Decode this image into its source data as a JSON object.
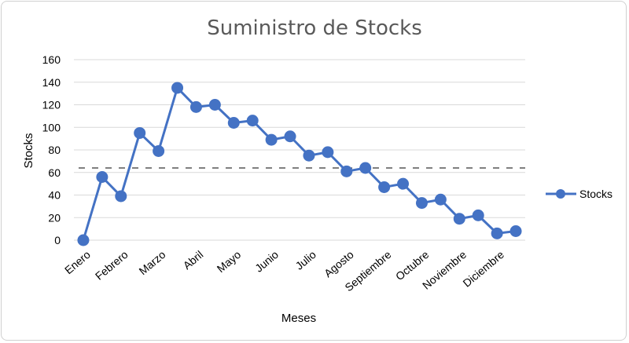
{
  "chart_data": {
    "type": "line",
    "title": "Suministro de Stocks",
    "xlabel": "Meses",
    "ylabel": "Stocks",
    "ylim": [
      0,
      160
    ],
    "yticks": [
      0,
      20,
      40,
      60,
      80,
      100,
      120,
      140,
      160
    ],
    "x_tick_labels": [
      "Enero",
      "Febrero",
      "Marzo",
      "Abril",
      "Mayo",
      "Junio",
      "Julio",
      "Agosto",
      "Septiembre",
      "Octubre",
      "Noviembre",
      "Diciembre"
    ],
    "threshold": 64,
    "grid": true,
    "legend_position": "right",
    "series": [
      {
        "name": "Stocks",
        "color": "#4472c4",
        "values": [
          0,
          56,
          39,
          95,
          79,
          135,
          118,
          120,
          104,
          106,
          89,
          92,
          75,
          78,
          61,
          64,
          47,
          50,
          33,
          36,
          19,
          22,
          6,
          8
        ]
      }
    ]
  }
}
